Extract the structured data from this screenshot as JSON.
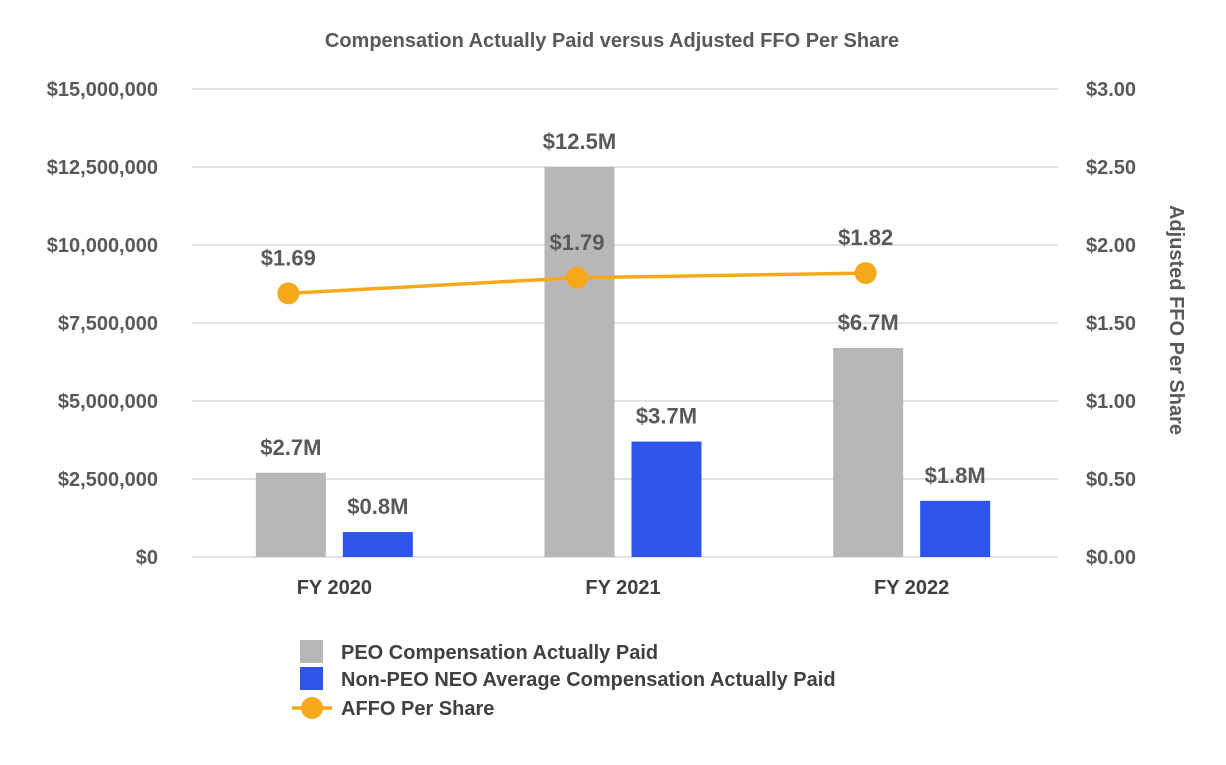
{
  "chart_data": {
    "type": "bar",
    "title": "Compensation Actually Paid versus Adjusted FFO Per Share",
    "categories": [
      "FY 2020",
      "FY 2021",
      "FY 2022"
    ],
    "series": [
      {
        "name": "PEO Compensation Actually Paid",
        "kind": "bar",
        "axis": "left",
        "color": "#b7b7b7",
        "values": [
          2700000,
          12500000,
          6700000
        ],
        "labels": [
          "$2.7M",
          "$12.5M",
          "$6.7M"
        ]
      },
      {
        "name": "Non-PEO NEO Average Compensation Actually Paid",
        "kind": "bar",
        "axis": "left",
        "color": "#2f54eb",
        "values": [
          800000,
          3700000,
          1800000
        ],
        "labels": [
          "$0.8M",
          "$3.7M",
          "$1.8M"
        ]
      },
      {
        "name": "AFFO Per Share",
        "kind": "line",
        "axis": "right",
        "color": "#f5a81c",
        "values": [
          1.69,
          1.79,
          1.82
        ],
        "labels": [
          "$1.69",
          "$1.79",
          "$1.82"
        ]
      }
    ],
    "left_axis": {
      "ylim": [
        0,
        15000000
      ],
      "ticks": [
        0,
        2500000,
        5000000,
        7500000,
        10000000,
        12500000,
        15000000
      ],
      "tick_labels": [
        "$0",
        "$2,500,000",
        "$5,000,000",
        "$7,500,000",
        "$10,000,000",
        "$12,500,000",
        "$15,000,000"
      ]
    },
    "right_axis": {
      "label": "Adjusted FFO Per Share",
      "ylim": [
        0,
        3
      ],
      "ticks": [
        0,
        0.5,
        1,
        1.5,
        2,
        2.5,
        3
      ],
      "tick_labels": [
        "$0.00",
        "$0.50",
        "$1.00",
        "$1.50",
        "$2.00",
        "$2.50",
        "$3.00"
      ]
    },
    "grid": true,
    "legend_position": "bottom-center"
  }
}
